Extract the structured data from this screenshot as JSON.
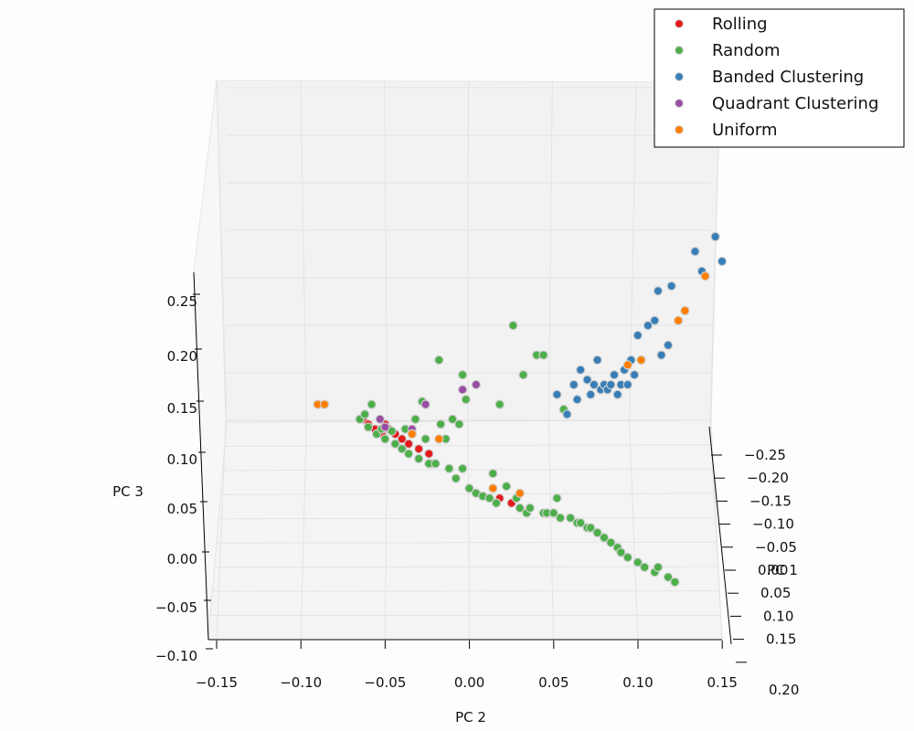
{
  "chart_data": {
    "type": "scatter",
    "projection": "3d",
    "axes": {
      "x": {
        "label": "PC 2",
        "range": [
          -0.15,
          0.15
        ],
        "ticks": [
          "−0.15",
          "−0.10",
          "−0.05",
          "0.00",
          "0.05",
          "0.10",
          "0.15"
        ]
      },
      "depth": {
        "label": "PC 1",
        "range": [
          -0.25,
          0.2
        ],
        "ticks": [
          "−0.25",
          "−0.20",
          "−0.15",
          "−0.10",
          "−0.05",
          "0.00",
          "0.05",
          "0.10",
          "0.15",
          "0.20"
        ]
      },
      "z": {
        "label": "PC 3",
        "range": [
          -0.1,
          0.25
        ],
        "ticks": [
          "−0.10",
          "−0.05",
          "0.00",
          "0.05",
          "0.10",
          "0.15",
          "0.20",
          "0.25"
        ]
      }
    },
    "grid": true,
    "legend_position": "top-right",
    "colors": {
      "Rolling": "#e41a1c",
      "Random": "#4daf4a",
      "Banded Clustering": "#377eb8",
      "Quadrant Clustering": "#984ea3",
      "Uniform": "#ff7f00"
    },
    "series": [
      {
        "name": "Rolling",
        "points": [
          [
            -0.063,
            -0.26,
            0.14
          ],
          [
            -0.06,
            -0.26,
            0.135
          ],
          [
            -0.056,
            -0.26,
            0.13
          ],
          [
            -0.052,
            -0.26,
            0.125
          ],
          [
            -0.05,
            -0.26,
            0.135
          ],
          [
            -0.048,
            -0.26,
            0.13
          ],
          [
            -0.044,
            -0.26,
            0.125
          ],
          [
            -0.04,
            -0.26,
            0.12
          ],
          [
            -0.036,
            -0.26,
            0.115
          ],
          [
            -0.03,
            -0.26,
            0.11
          ],
          [
            -0.024,
            -0.26,
            0.105
          ],
          [
            -0.022,
            -0.26,
            0.095
          ],
          [
            0.018,
            -0.26,
            0.06
          ],
          [
            0.025,
            -0.26,
            0.055
          ]
        ]
      },
      {
        "name": "Random",
        "points": [
          [
            -0.065,
            -0.26,
            0.14
          ],
          [
            -0.062,
            -0.26,
            0.145
          ],
          [
            -0.06,
            -0.26,
            0.132
          ],
          [
            -0.058,
            -0.26,
            0.155
          ],
          [
            -0.055,
            -0.26,
            0.125
          ],
          [
            -0.052,
            -0.26,
            0.13
          ],
          [
            -0.05,
            -0.26,
            0.12
          ],
          [
            -0.046,
            -0.26,
            0.128
          ],
          [
            -0.044,
            -0.26,
            0.115
          ],
          [
            -0.04,
            -0.26,
            0.11
          ],
          [
            -0.038,
            -0.26,
            0.13
          ],
          [
            -0.036,
            -0.26,
            0.105
          ],
          [
            -0.032,
            -0.26,
            0.14
          ],
          [
            -0.03,
            -0.26,
            0.1
          ],
          [
            -0.028,
            -0.26,
            0.158
          ],
          [
            -0.026,
            -0.26,
            0.12
          ],
          [
            -0.024,
            -0.26,
            0.095
          ],
          [
            -0.02,
            -0.26,
            0.095
          ],
          [
            -0.018,
            -0.26,
            0.2
          ],
          [
            -0.017,
            -0.26,
            0.135
          ],
          [
            -0.014,
            -0.26,
            0.12
          ],
          [
            -0.012,
            -0.26,
            0.09
          ],
          [
            -0.01,
            -0.26,
            0.14
          ],
          [
            -0.008,
            -0.26,
            0.08
          ],
          [
            -0.006,
            -0.26,
            0.135
          ],
          [
            -0.004,
            -0.26,
            0.09
          ],
          [
            -0.004,
            -0.26,
            0.185
          ],
          [
            -0.002,
            -0.26,
            0.16
          ],
          [
            0.0,
            -0.26,
            0.07
          ],
          [
            0.004,
            -0.26,
            0.065
          ],
          [
            0.008,
            -0.26,
            0.062
          ],
          [
            0.012,
            -0.26,
            0.06
          ],
          [
            0.014,
            -0.26,
            0.085
          ],
          [
            0.016,
            -0.26,
            0.055
          ],
          [
            0.018,
            -0.26,
            0.155
          ],
          [
            0.022,
            -0.26,
            0.072
          ],
          [
            0.026,
            -0.26,
            0.235
          ],
          [
            0.028,
            -0.26,
            0.06
          ],
          [
            0.03,
            -0.26,
            0.05
          ],
          [
            0.032,
            -0.26,
            0.185
          ],
          [
            0.034,
            -0.26,
            0.045
          ],
          [
            0.036,
            -0.26,
            0.05
          ],
          [
            0.04,
            -0.26,
            0.205
          ],
          [
            0.044,
            -0.26,
            0.205
          ],
          [
            0.044,
            -0.26,
            0.045
          ],
          [
            0.046,
            -0.26,
            0.045
          ],
          [
            0.05,
            -0.26,
            0.045
          ],
          [
            0.052,
            -0.26,
            0.06
          ],
          [
            0.054,
            -0.26,
            0.04
          ],
          [
            0.056,
            -0.26,
            0.15
          ],
          [
            0.06,
            -0.26,
            0.04
          ],
          [
            0.064,
            -0.26,
            0.035
          ],
          [
            0.066,
            -0.26,
            0.035
          ],
          [
            0.07,
            -0.26,
            0.03
          ],
          [
            0.072,
            -0.26,
            0.03
          ],
          [
            0.076,
            -0.26,
            0.025
          ],
          [
            0.08,
            -0.26,
            0.02
          ],
          [
            0.084,
            -0.26,
            0.015
          ],
          [
            0.088,
            -0.26,
            0.01
          ],
          [
            0.09,
            -0.26,
            0.005
          ],
          [
            0.094,
            -0.26,
            0.0
          ],
          [
            0.1,
            -0.26,
            -0.005
          ],
          [
            0.104,
            -0.26,
            -0.01
          ],
          [
            0.11,
            -0.26,
            -0.015
          ],
          [
            0.112,
            -0.26,
            -0.01
          ],
          [
            0.118,
            -0.26,
            -0.02
          ],
          [
            0.122,
            -0.26,
            -0.025
          ]
        ]
      },
      {
        "name": "Banded Clustering",
        "points": [
          [
            0.052,
            -0.26,
            0.165
          ],
          [
            0.058,
            -0.26,
            0.145
          ],
          [
            0.062,
            -0.26,
            0.175
          ],
          [
            0.064,
            -0.26,
            0.16
          ],
          [
            0.066,
            -0.26,
            0.19
          ],
          [
            0.07,
            -0.26,
            0.18
          ],
          [
            0.072,
            -0.26,
            0.165
          ],
          [
            0.074,
            -0.26,
            0.175
          ],
          [
            0.076,
            -0.26,
            0.2
          ],
          [
            0.078,
            -0.26,
            0.17
          ],
          [
            0.08,
            -0.26,
            0.175
          ],
          [
            0.082,
            -0.26,
            0.17
          ],
          [
            0.084,
            -0.26,
            0.175
          ],
          [
            0.086,
            -0.26,
            0.185
          ],
          [
            0.088,
            -0.26,
            0.165
          ],
          [
            0.09,
            -0.26,
            0.175
          ],
          [
            0.092,
            -0.26,
            0.19
          ],
          [
            0.094,
            -0.26,
            0.175
          ],
          [
            0.096,
            -0.26,
            0.2
          ],
          [
            0.098,
            -0.26,
            0.185
          ],
          [
            0.1,
            -0.26,
            0.225
          ],
          [
            0.106,
            -0.26,
            0.235
          ],
          [
            0.11,
            -0.26,
            0.24
          ],
          [
            0.112,
            -0.26,
            0.27
          ],
          [
            0.114,
            -0.26,
            0.205
          ],
          [
            0.118,
            -0.26,
            0.215
          ],
          [
            0.12,
            -0.26,
            0.275
          ],
          [
            0.134,
            -0.26,
            0.31
          ],
          [
            0.138,
            -0.26,
            0.29
          ],
          [
            0.146,
            -0.26,
            0.325
          ],
          [
            0.15,
            -0.26,
            0.3
          ]
        ]
      },
      {
        "name": "Quadrant Clustering",
        "points": [
          [
            -0.053,
            -0.26,
            0.14
          ],
          [
            -0.05,
            -0.26,
            0.132
          ],
          [
            -0.034,
            -0.26,
            0.13
          ],
          [
            -0.026,
            -0.26,
            0.155
          ],
          [
            -0.004,
            -0.26,
            0.17
          ],
          [
            0.004,
            -0.26,
            0.175
          ]
        ]
      },
      {
        "name": "Uniform",
        "points": [
          [
            -0.09,
            -0.26,
            0.155
          ],
          [
            -0.086,
            -0.26,
            0.155
          ],
          [
            -0.034,
            -0.26,
            0.125
          ],
          [
            -0.018,
            -0.26,
            0.12
          ],
          [
            0.014,
            -0.26,
            0.07
          ],
          [
            0.03,
            -0.26,
            0.065
          ],
          [
            0.094,
            -0.26,
            0.195
          ],
          [
            0.102,
            -0.26,
            0.2
          ],
          [
            0.124,
            -0.26,
            0.24
          ],
          [
            0.128,
            -0.26,
            0.25
          ],
          [
            0.14,
            -0.26,
            0.285
          ]
        ]
      }
    ]
  }
}
